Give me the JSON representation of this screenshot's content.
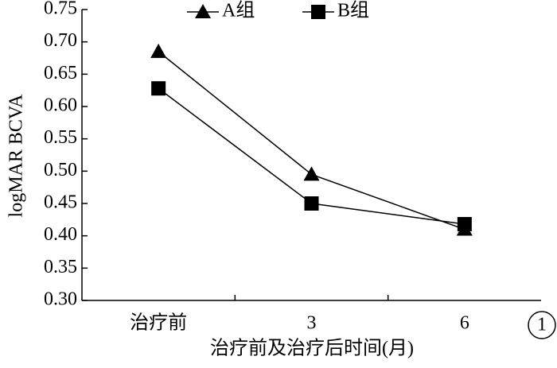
{
  "chart_data": {
    "type": "line",
    "x_label": "治疗前及治疗后时间(月)",
    "y_label": "logMAR BCVA",
    "annotation": "1",
    "categories": [
      "治疗前",
      "3",
      "6"
    ],
    "series": [
      {
        "name": "A组",
        "color": "#000000",
        "marker": "triangle",
        "values": [
          0.685,
          0.495,
          0.41
        ]
      },
      {
        "name": "B组",
        "color": "#000000",
        "marker": "square",
        "values": [
          0.628,
          0.45,
          0.418
        ]
      }
    ],
    "ylim": [
      0.3,
      0.75
    ],
    "yticks": [
      {
        "value": 0.3,
        "label": "0.30"
      },
      {
        "value": 0.35,
        "label": "0.35"
      },
      {
        "value": 0.4,
        "label": "0.40"
      },
      {
        "value": 0.45,
        "label": "0.45"
      },
      {
        "value": 0.5,
        "label": "0.50"
      },
      {
        "value": 0.55,
        "label": "0.55"
      },
      {
        "value": 0.6,
        "label": "0.60"
      },
      {
        "value": 0.65,
        "label": "0.65"
      },
      {
        "value": 0.7,
        "label": "0.70"
      },
      {
        "value": 0.75,
        "label": "0.75"
      }
    ],
    "legend": "upper center",
    "grid": false
  }
}
